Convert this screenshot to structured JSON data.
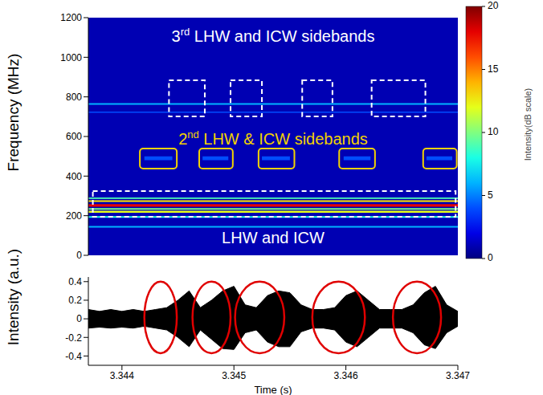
{
  "chart_data": [
    {
      "type": "spectrogram",
      "ylabel": "Frequency (MHz)",
      "xlim": [
        3.3437,
        3.347
      ],
      "ylim": [
        0,
        1200
      ],
      "yticks": [
        0,
        200,
        400,
        600,
        800,
        1000,
        1200
      ],
      "tick_labels": "y",
      "colorbar": {
        "range": [
          0,
          20
        ],
        "ticks": [
          0,
          5,
          10,
          15,
          20
        ],
        "label": "Intensity(dB scale)"
      },
      "background_intensity": 1,
      "bands": [
        {
          "f0": 140,
          "f1": 148,
          "intensity": 6
        },
        {
          "f0": 190,
          "f1": 198,
          "intensity": 8
        },
        {
          "f0": 215,
          "f1": 225,
          "intensity": 12
        },
        {
          "f0": 230,
          "f1": 238,
          "intensity": 10
        },
        {
          "f0": 245,
          "f1": 258,
          "intensity": 18
        },
        {
          "f0": 270,
          "f1": 278,
          "intensity": 13
        },
        {
          "f0": 285,
          "f1": 292,
          "intensity": 9
        },
        {
          "f0": 720,
          "f1": 726,
          "intensity": 4
        },
        {
          "f0": 760,
          "f1": 768,
          "intensity": 6
        }
      ],
      "patches": [
        {
          "t0": 3.3442,
          "t1": 3.34445,
          "f0": 480,
          "f1": 500,
          "intensity": 4
        },
        {
          "t0": 3.34472,
          "t1": 3.34495,
          "f0": 480,
          "f1": 500,
          "intensity": 4
        },
        {
          "t0": 3.34525,
          "t1": 3.3455,
          "f0": 480,
          "f1": 500,
          "intensity": 4
        },
        {
          "t0": 3.34598,
          "t1": 3.34622,
          "f0": 480,
          "f1": 500,
          "intensity": 4
        },
        {
          "t0": 3.34672,
          "t1": 3.34695,
          "f0": 480,
          "f1": 500,
          "intensity": 4
        }
      ],
      "annotations": [
        {
          "text": "3rd LHW and ICW sidebands",
          "color": "#ffffff",
          "line_style": "dashed",
          "boxes": [
            {
              "t0": 3.34442,
              "t1": 3.34474,
              "f0": 701,
              "f1": 884
            },
            {
              "t0": 3.34497,
              "t1": 3.34525,
              "f0": 701,
              "f1": 884
            },
            {
              "t0": 3.34561,
              "t1": 3.34588,
              "f0": 701,
              "f1": 884
            },
            {
              "t0": 3.34623,
              "t1": 3.34671,
              "f0": 701,
              "f1": 884
            }
          ]
        },
        {
          "text": "2nd LHW & ICW sidebands",
          "color": "#f2d200",
          "line_style": "solid",
          "boxes": [
            {
              "t0": 3.34416,
              "t1": 3.34449,
              "f0": 438,
              "f1": 539
            },
            {
              "t0": 3.34469,
              "t1": 3.34499,
              "f0": 438,
              "f1": 539
            },
            {
              "t0": 3.34522,
              "t1": 3.34554,
              "f0": 438,
              "f1": 539
            },
            {
              "t0": 3.34594,
              "t1": 3.34626,
              "f0": 438,
              "f1": 539
            },
            {
              "t0": 3.34669,
              "t1": 3.34699,
              "f0": 438,
              "f1": 539
            }
          ]
        },
        {
          "text": "LHW and ICW",
          "color": "#ffffff",
          "line_style": "dashed",
          "boxes": [
            {
              "t0": 3.34374,
              "t1": 3.34698,
              "f0": 195,
              "f1": 324
            }
          ]
        }
      ]
    },
    {
      "type": "area",
      "ylabel": "Intensity (a.u.)",
      "xlabel": "Time (s)",
      "xlim": [
        3.3437,
        3.347
      ],
      "xticks": [
        3.344,
        3.345,
        3.346,
        3.347
      ],
      "ylim": [
        -0.5,
        0.45
      ],
      "yticks": [
        -0.4,
        -0.2,
        0,
        0.2,
        0.4
      ],
      "color": "#000000",
      "x": [
        3.3437,
        3.3438,
        3.3439,
        3.344,
        3.3441,
        3.3442,
        3.3443,
        3.3444,
        3.3445,
        3.3446,
        3.3447,
        3.3448,
        3.3449,
        3.345,
        3.3451,
        3.3452,
        3.3453,
        3.3454,
        3.3455,
        3.3456,
        3.3457,
        3.3458,
        3.3459,
        3.346,
        3.3461,
        3.3462,
        3.3463,
        3.3464,
        3.3465,
        3.3466,
        3.3467,
        3.3468,
        3.3469,
        3.347
      ],
      "upper": [
        0.1,
        0.08,
        0.1,
        0.08,
        0.1,
        0.08,
        0.1,
        0.12,
        0.2,
        0.3,
        0.12,
        0.2,
        0.3,
        0.35,
        0.15,
        0.12,
        0.25,
        0.3,
        0.28,
        0.15,
        0.1,
        0.1,
        0.12,
        0.25,
        0.3,
        0.2,
        0.1,
        0.1,
        0.1,
        0.15,
        0.28,
        0.35,
        0.15,
        0.08
      ],
      "lower": [
        -0.1,
        -0.09,
        -0.1,
        -0.09,
        -0.1,
        -0.08,
        -0.1,
        -0.12,
        -0.2,
        -0.3,
        -0.12,
        -0.22,
        -0.32,
        -0.33,
        -0.15,
        -0.12,
        -0.25,
        -0.3,
        -0.3,
        -0.14,
        -0.1,
        -0.1,
        -0.12,
        -0.25,
        -0.3,
        -0.2,
        -0.1,
        -0.1,
        -0.1,
        -0.15,
        -0.28,
        -0.32,
        -0.15,
        -0.08
      ],
      "highlights": {
        "color": "#e00000",
        "regions": [
          {
            "t0": 3.3442,
            "t1": 3.34449,
            "y0": -0.37,
            "y1": 0.4
          },
          {
            "t0": 3.34463,
            "t1": 3.34497,
            "y0": -0.37,
            "y1": 0.4
          },
          {
            "t0": 3.34501,
            "t1": 3.34545,
            "y0": -0.37,
            "y1": 0.4
          },
          {
            "t0": 3.3457,
            "t1": 3.34617,
            "y0": -0.37,
            "y1": 0.4
          },
          {
            "t0": 3.34642,
            "t1": 3.34685,
            "y0": -0.37,
            "y1": 0.4
          }
        ]
      }
    }
  ]
}
